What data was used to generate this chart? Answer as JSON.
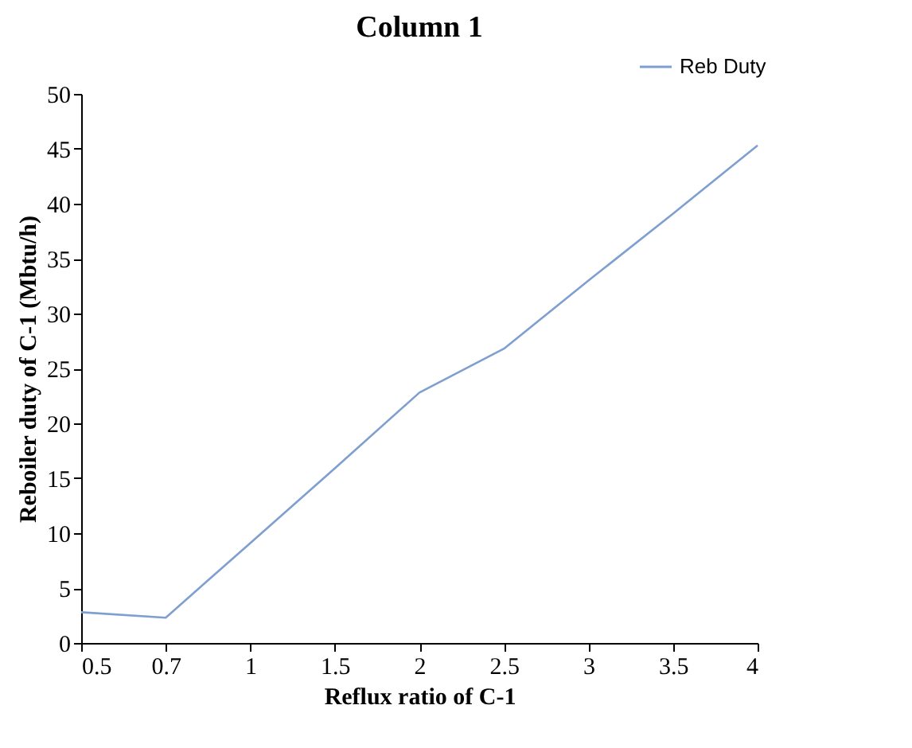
{
  "chart_data": {
    "type": "line",
    "title": "Column 1",
    "xlabel": "Reflux ratio of C-1",
    "ylabel": "Reboiler duty of C-1 (Mbtu/h)",
    "categories": [
      "0.5",
      "0.7",
      "1",
      "1.5",
      "2",
      "2.5",
      "3",
      "3.5",
      "4"
    ],
    "series": [
      {
        "name": "Reb Duty",
        "color": "#7f9fd0",
        "values": [
          2.8,
          2.3,
          9.1,
          15.9,
          22.8,
          26.8,
          33.0,
          39.1,
          45.3
        ]
      }
    ],
    "ylim": [
      0,
      50
    ],
    "yticks": [
      0,
      5,
      10,
      15,
      20,
      25,
      30,
      35,
      40,
      45,
      50
    ],
    "grid": false,
    "legend": "top right",
    "marker": "none",
    "line_style": "solid"
  }
}
